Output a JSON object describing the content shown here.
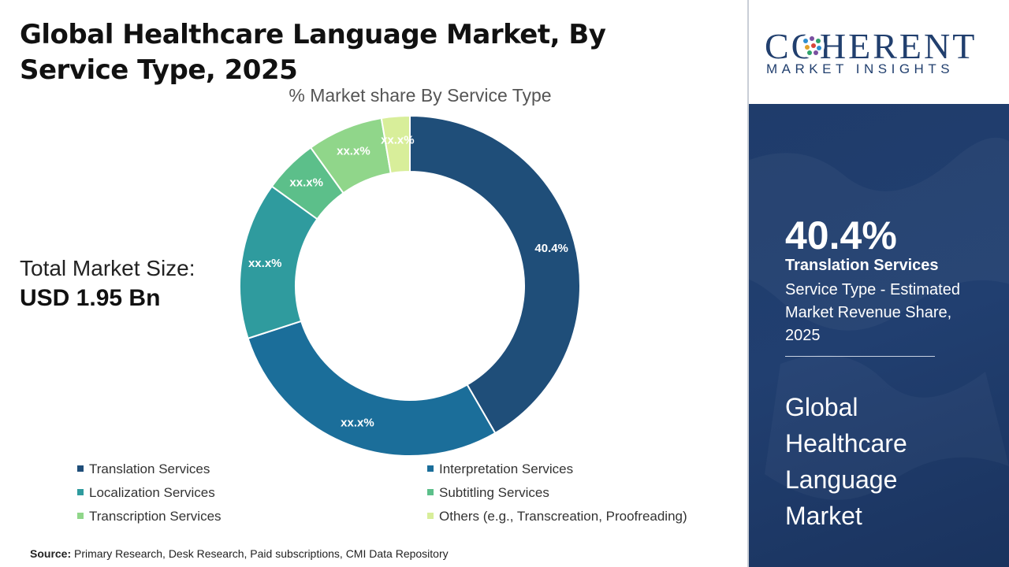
{
  "header": {
    "title": "Global Healthcare Language Market, By Service Type, 2025"
  },
  "market_size": {
    "label": "Total Market Size:",
    "value": "USD 1.95 Bn"
  },
  "source": {
    "label": "Source:",
    "text": "Primary Research, Desk Research, Paid subscriptions, CMI Data Repository"
  },
  "brand": {
    "name": "COHERENT",
    "tagline": "MARKET INSIGHTS",
    "color": "#213f6e"
  },
  "highlight": {
    "value": "40.4%",
    "segment": "Translation Services",
    "description": "Service Type - Estimated Market Revenue Share, 2025",
    "panel_title": "Global Healthcare Language Market",
    "panel_color": "#1f3c6b"
  },
  "chart_data": {
    "type": "pie",
    "subtitle": "% Market share By Service Type",
    "donut": true,
    "legend_position": "bottom",
    "slices": [
      {
        "name": "Translation Services",
        "value": 40.4,
        "label": "40.4%",
        "color": "#1f4e79"
      },
      {
        "name": "Interpretation Services",
        "value": 27.5,
        "label": "xx.x%",
        "color": "#1b6e9a"
      },
      {
        "name": "Localization Services",
        "value": 14.5,
        "label": "xx.x%",
        "color": "#2f9b9e"
      },
      {
        "name": "Subtitling Services",
        "value": 5.0,
        "label": "xx.x%",
        "color": "#5cbf8a"
      },
      {
        "name": "Transcription Services",
        "value": 7.0,
        "label": "xx.x%",
        "color": "#90d68a"
      },
      {
        "name": "Others (e.g., Transcreation, Proofreading)",
        "value": 2.6,
        "label": "xx.x%",
        "color": "#d8ee9a"
      }
    ]
  }
}
